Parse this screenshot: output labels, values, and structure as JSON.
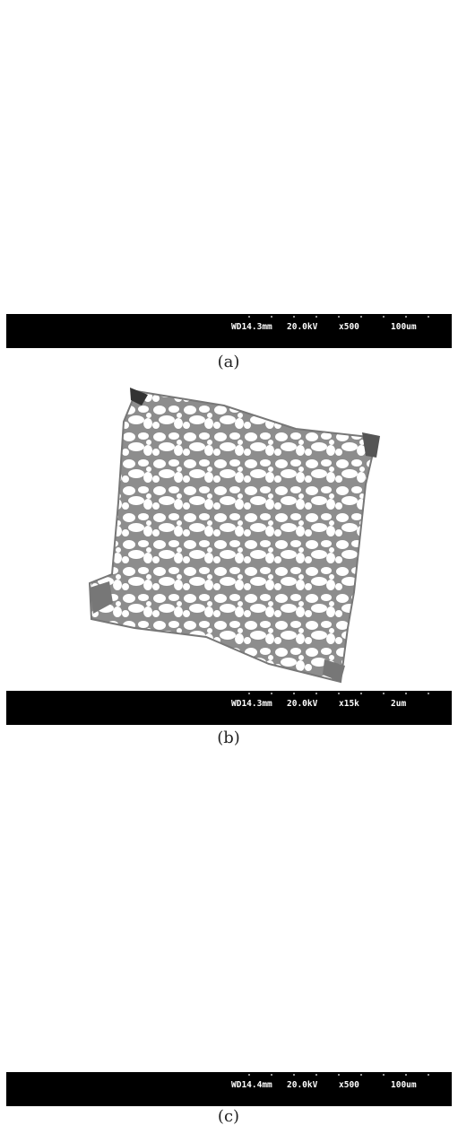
{
  "panels": [
    {
      "info": {
        "wd": "WD14.3mm",
        "kv": "20.0kV",
        "mag": "x500",
        "scale": "100um"
      },
      "caption": "(a)"
    },
    {
      "info": {
        "wd": "WD14.3mm",
        "kv": "20.0kV",
        "mag": "x15k",
        "scale": "2um"
      },
      "caption": "(b)"
    },
    {
      "info": {
        "wd": "WD14.4mm",
        "kv": "20.0kV",
        "mag": "x500",
        "scale": "100um"
      },
      "caption": "(c)"
    }
  ]
}
